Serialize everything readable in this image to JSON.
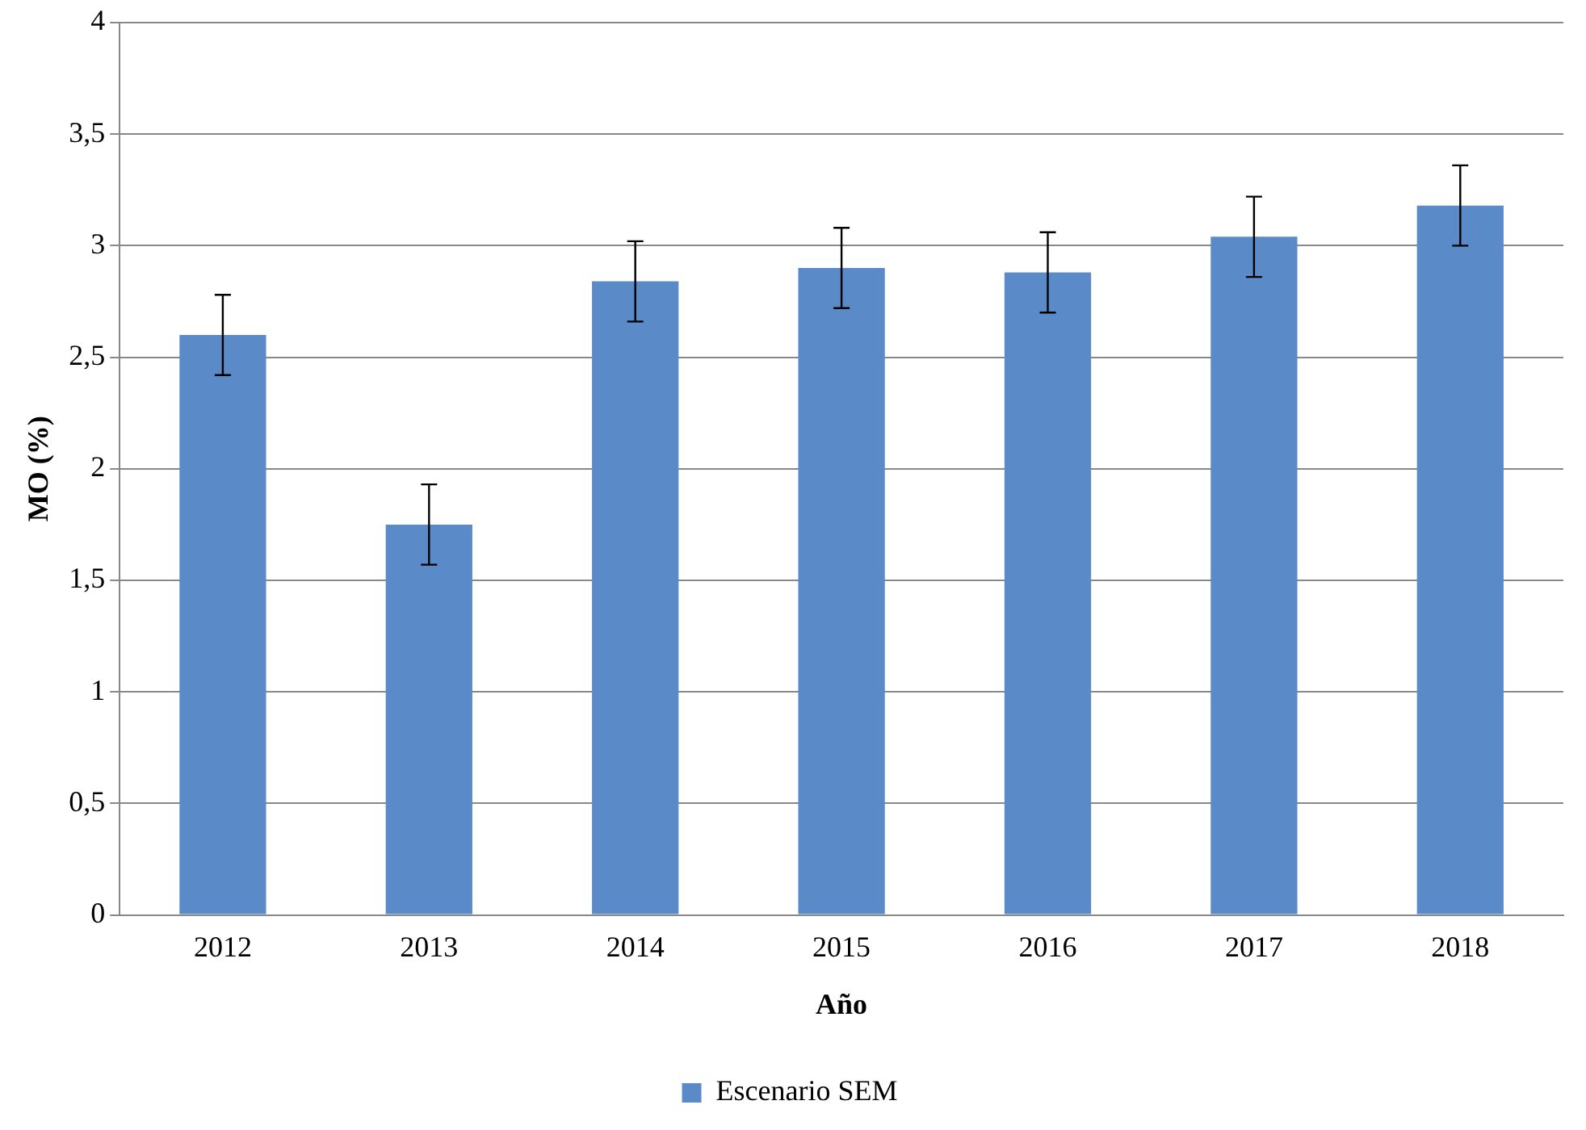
{
  "chart_data": {
    "type": "bar",
    "xlabel": "Año",
    "ylabel": "MO (%)",
    "categories": [
      "2012",
      "2013",
      "2014",
      "2015",
      "2016",
      "2017",
      "2018"
    ],
    "series": [
      {
        "name": "Escenario SEM",
        "color": "#5a8bc8",
        "values": [
          2.6,
          1.75,
          2.84,
          2.9,
          2.88,
          3.04,
          3.18
        ],
        "errors": [
          0.18,
          0.18,
          0.18,
          0.18,
          0.18,
          0.18,
          0.18
        ]
      }
    ],
    "ylim": [
      0,
      4
    ],
    "yticks": [
      0,
      {
        "value": 0.5,
        "label": "0,5"
      },
      1,
      {
        "value": 1.5,
        "label": "1,5"
      },
      2,
      {
        "value": 2.5,
        "label": "2,5"
      },
      3,
      {
        "value": 3.5,
        "label": "3,5"
      },
      4
    ],
    "grid": "y",
    "legend": "bottom"
  }
}
